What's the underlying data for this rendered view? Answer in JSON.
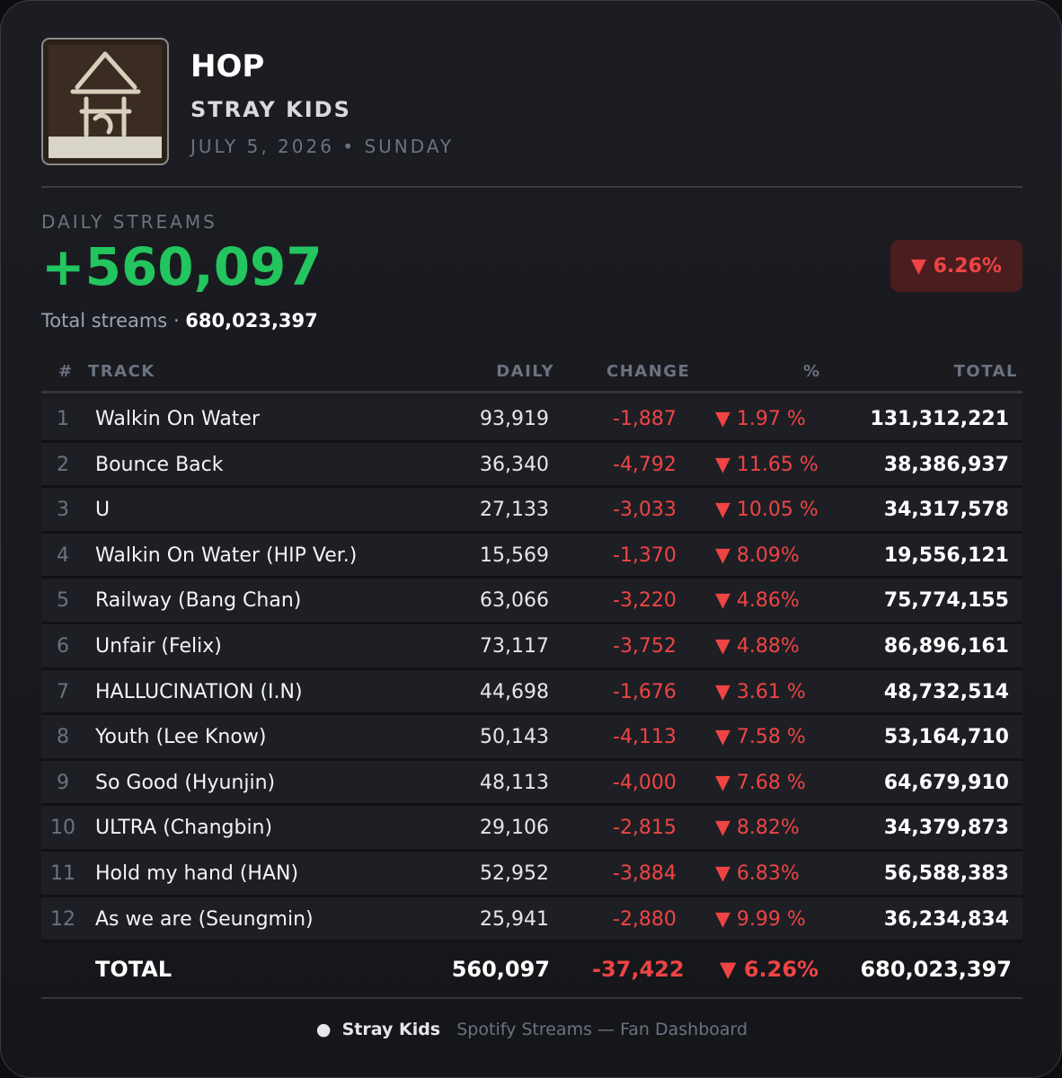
{
  "header": {
    "title": "HOP",
    "artist": "STRAY KIDS",
    "date": "JULY 5, 2026 • SUNDAY"
  },
  "summary": {
    "label": "DAILY STREAMS",
    "daily": "+560,097",
    "change_badge": "6.26%",
    "total_label": "Total streams",
    "total": "680,023,397"
  },
  "table": {
    "columns": [
      "#",
      "TRACK",
      "DAILY",
      "CHANGE",
      "%",
      "TOTAL"
    ],
    "rows": [
      [
        1,
        "Walkin On Water",
        "93,919",
        "-1,887",
        "1.97 %",
        "131,312,221"
      ],
      [
        2,
        "Bounce Back",
        "36,340",
        "-4,792",
        "11.65 %",
        "38,386,937"
      ],
      [
        3,
        "U",
        "27,133",
        "-3,033",
        "10.05 %",
        "34,317,578"
      ],
      [
        4,
        "Walkin On Water (HIP Ver.)",
        "15,569",
        "-1,370",
        "8.09%",
        "19,556,121"
      ],
      [
        5,
        "Railway (Bang Chan)",
        "63,066",
        "-3,220",
        "4.86%",
        "75,774,155"
      ],
      [
        6,
        "Unfair (Felix)",
        "73,117",
        "-3,752",
        "4.88%",
        "86,896,161"
      ],
      [
        7,
        "HALLUCINATION (I.N)",
        "44,698",
        "-1,676",
        "3.61 %",
        "48,732,514"
      ],
      [
        8,
        "Youth (Lee Know)",
        "50,143",
        "-4,113",
        "7.58 %",
        "53,164,710"
      ],
      [
        9,
        "So Good (Hyunjin)",
        "48,113",
        "-4,000",
        "7.68 %",
        "64,679,910"
      ],
      [
        10,
        "ULTRA (Changbin)",
        "29,106",
        "-2,815",
        "8.82%",
        "34,379,873"
      ],
      [
        11,
        "Hold my hand (HAN)",
        "52,952",
        "-3,884",
        "6.83%",
        "56,588,383"
      ],
      [
        12,
        "As we are (Seungmin)",
        "25,941",
        "-2,880",
        "9.99 %",
        "36,234,834"
      ]
    ],
    "total_row": [
      "TOTAL",
      "560,097",
      "-37,422",
      "6.26%",
      "680,023,397"
    ]
  },
  "footer": {
    "brand": "Stray Kids",
    "text": "Spotify Streams — Fan Dashboard"
  }
}
